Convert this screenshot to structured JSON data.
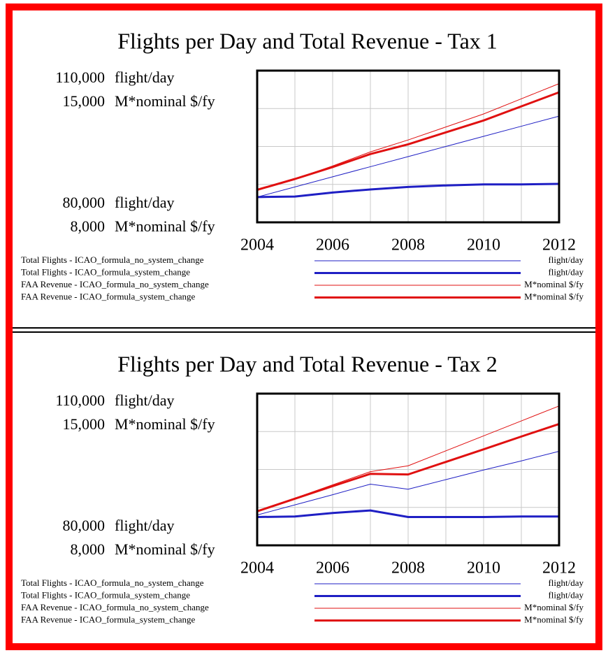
{
  "chart_data": [
    {
      "type": "line",
      "title": "Flights per Day and Total Revenue - Tax 1",
      "x": [
        2004,
        2005,
        2006,
        2007,
        2008,
        2009,
        2010,
        2011,
        2012
      ],
      "xlim": [
        2004,
        2012
      ],
      "xticks": [
        2004,
        2006,
        2008,
        2010,
        2012
      ],
      "ylim": [
        80000,
        110000
      ],
      "yticks": [
        {
          "value": 80000,
          "label": "80,000"
        },
        {
          "value": 110000,
          "label": "110,000"
        }
      ],
      "y_unit": "flight/day",
      "y2lim": [
        8000,
        15000
      ],
      "y2ticks": [
        {
          "value": 8000,
          "label": "8,000"
        },
        {
          "value": 15000,
          "label": "15,000"
        }
      ],
      "y2_unit": "M*nominal $/fy",
      "grid": {
        "x": 8,
        "y": 4
      },
      "series": [
        {
          "name": "Total Flights - ICAO_formula_no_system_change",
          "unit": "flight/day",
          "color": "#1f1fc4",
          "line_width": 1,
          "axis": "y",
          "values": [
            85000,
            87000,
            89000,
            91000,
            93000,
            95000,
            97000,
            99000,
            101000
          ]
        },
        {
          "name": "Total Flights - ICAO_formula_system_change",
          "unit": "flight/day",
          "color": "#1f1fc4",
          "line_width": 3,
          "axis": "y",
          "values": [
            85000,
            85100,
            85900,
            86500,
            87000,
            87300,
            87500,
            87500,
            87600
          ]
        },
        {
          "name": "FAA Revenue - ICAO_formula_no_system_change",
          "unit": "M*nominal $/fy",
          "color": "#e01010",
          "line_width": 1,
          "axis": "y2",
          "values": [
            9500,
            10000,
            10600,
            11250,
            11800,
            12400,
            13000,
            13700,
            14400
          ]
        },
        {
          "name": "FAA Revenue - ICAO_formula_system_change",
          "unit": "M*nominal $/fy",
          "color": "#e01010",
          "line_width": 3,
          "axis": "y2",
          "values": [
            9500,
            10000,
            10550,
            11150,
            11600,
            12150,
            12700,
            13350,
            14000
          ]
        }
      ]
    },
    {
      "type": "line",
      "title": "Flights per Day and Total Revenue - Tax 2",
      "x": [
        2004,
        2005,
        2006,
        2007,
        2008,
        2009,
        2010,
        2011,
        2012
      ],
      "xlim": [
        2004,
        2012
      ],
      "xticks": [
        2004,
        2006,
        2008,
        2010,
        2012
      ],
      "ylim": [
        80000,
        110000
      ],
      "yticks": [
        {
          "value": 80000,
          "label": "80,000"
        },
        {
          "value": 110000,
          "label": "110,000"
        }
      ],
      "y_unit": "flight/day",
      "y2lim": [
        8000,
        15000
      ],
      "y2ticks": [
        {
          "value": 8000,
          "label": "8,000"
        },
        {
          "value": 15000,
          "label": "15,000"
        }
      ],
      "y2_unit": "M*nominal $/fy",
      "grid": {
        "x": 8,
        "y": 4
      },
      "series": [
        {
          "name": "Total Flights - ICAO_formula_no_system_change",
          "unit": "flight/day",
          "color": "#1f1fc4",
          "line_width": 1,
          "axis": "y",
          "values": [
            86000,
            88000,
            90000,
            92100,
            91100,
            93000,
            94900,
            96700,
            98600
          ]
        },
        {
          "name": "Total Flights - ICAO_formula_system_change",
          "unit": "flight/day",
          "color": "#1f1fc4",
          "line_width": 3,
          "axis": "y",
          "values": [
            85600,
            85700,
            86400,
            86900,
            85600,
            85600,
            85600,
            85700,
            85700
          ]
        },
        {
          "name": "FAA Revenue - ICAO_formula_no_system_change",
          "unit": "M*nominal $/fy",
          "color": "#e01010",
          "line_width": 1,
          "axis": "y2",
          "values": [
            9570,
            10180,
            10790,
            11400,
            11670,
            12360,
            13050,
            13740,
            14430
          ]
        },
        {
          "name": "FAA Revenue - ICAO_formula_system_change",
          "unit": "M*nominal $/fy",
          "color": "#e01010",
          "line_width": 3,
          "axis": "y2",
          "values": [
            9570,
            10150,
            10730,
            11300,
            11270,
            11850,
            12430,
            13020,
            13600
          ]
        }
      ]
    }
  ]
}
